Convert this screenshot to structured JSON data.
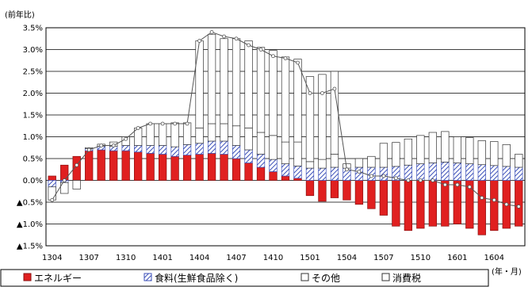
{
  "chart_data": {
    "type": "bar",
    "stacked": true,
    "unit_label": "(前年比)",
    "x_unit_label": "(年・月)",
    "ylim": [
      -1.5,
      3.5
    ],
    "y_ticks": [
      {
        "value": 3.5,
        "label": "3.5%"
      },
      {
        "value": 3.0,
        "label": "3.0%"
      },
      {
        "value": 2.5,
        "label": "2.5%"
      },
      {
        "value": 2.0,
        "label": "2.0%"
      },
      {
        "value": 1.5,
        "label": "1.5%"
      },
      {
        "value": 1.0,
        "label": "1.0%"
      },
      {
        "value": 0.5,
        "label": "0.5%"
      },
      {
        "value": 0.0,
        "label": "0.0%"
      },
      {
        "value": -0.5,
        "label": "▲0.5%"
      },
      {
        "value": -1.0,
        "label": "▲1.0%"
      },
      {
        "value": -1.5,
        "label": "▲1.5%"
      }
    ],
    "grid": true,
    "categories": [
      "1304",
      "1305",
      "1306",
      "1307",
      "1308",
      "1309",
      "1310",
      "1311",
      "1312",
      "1401",
      "1402",
      "1403",
      "1404",
      "1405",
      "1406",
      "1407",
      "1408",
      "1409",
      "1410",
      "1411",
      "1412",
      "1501",
      "1502",
      "1503",
      "1504",
      "1505",
      "1506",
      "1507",
      "1508",
      "1509",
      "1510",
      "1511",
      "1512",
      "1601",
      "1602",
      "1603",
      "1604",
      "1605",
      "1606"
    ],
    "x_tick_labels": [
      "1304",
      "1307",
      "1310",
      "1401",
      "1404",
      "1407",
      "1410",
      "1501",
      "1504",
      "1507",
      "1510",
      "1601",
      "1604"
    ],
    "series": [
      {
        "name": "エネルギー",
        "color": "#e02020",
        "values": [
          0.1,
          0.35,
          0.55,
          0.68,
          0.7,
          0.68,
          0.68,
          0.65,
          0.62,
          0.6,
          0.55,
          0.58,
          0.6,
          0.62,
          0.6,
          0.5,
          0.4,
          0.3,
          0.2,
          0.1,
          0.05,
          -0.35,
          -0.48,
          -0.4,
          -0.45,
          -0.55,
          -0.65,
          -0.8,
          -1.05,
          -1.15,
          -1.1,
          -1.05,
          -1.05,
          -1.0,
          -1.1,
          -1.25,
          -1.15,
          -1.1,
          -1.05
        ]
      },
      {
        "name": "食料(生鮮食品除く)",
        "color": "#4a5fc0",
        "values": [
          -0.15,
          -0.05,
          0.0,
          0.05,
          0.08,
          0.1,
          0.12,
          0.15,
          0.18,
          0.2,
          0.22,
          0.24,
          0.25,
          0.28,
          0.3,
          0.3,
          0.3,
          0.3,
          0.28,
          0.28,
          0.28,
          0.28,
          0.28,
          0.3,
          0.28,
          0.3,
          0.3,
          0.3,
          0.32,
          0.35,
          0.38,
          0.4,
          0.42,
          0.4,
          0.38,
          0.36,
          0.34,
          0.32,
          0.3
        ]
      },
      {
        "name": "その他",
        "color": "#ffffff",
        "values": [
          -0.3,
          -0.25,
          -0.2,
          0.02,
          0.05,
          0.1,
          0.2,
          0.4,
          0.5,
          0.5,
          0.55,
          0.5,
          0.35,
          0.4,
          0.4,
          0.45,
          0.5,
          0.5,
          0.55,
          0.5,
          0.55,
          0.15,
          0.2,
          0.3,
          0.1,
          0.2,
          0.25,
          0.55,
          0.55,
          0.6,
          0.65,
          0.7,
          0.7,
          0.6,
          0.6,
          0.55,
          0.55,
          0.5,
          0.3
        ]
      },
      {
        "name": "消費税",
        "color": "#ffffff",
        "values": [
          0,
          0,
          0,
          0,
          0,
          0,
          0,
          0,
          0,
          0,
          0,
          0,
          2.0,
          2.05,
          1.95,
          2.0,
          2.0,
          1.95,
          1.95,
          1.95,
          1.9,
          1.95,
          1.95,
          1.9,
          0,
          0,
          0,
          0,
          0,
          0,
          0,
          0,
          0,
          0,
          0,
          0,
          0,
          0,
          0
        ]
      }
    ],
    "line": {
      "values": [
        -0.45,
        0.0,
        0.35,
        0.7,
        0.8,
        0.8,
        0.95,
        1.2,
        1.3,
        1.3,
        1.3,
        1.3,
        3.2,
        3.4,
        3.3,
        3.25,
        3.1,
        3.0,
        2.85,
        2.8,
        2.7,
        2.0,
        2.0,
        2.1,
        0.25,
        0.2,
        0.1,
        0.1,
        0.05,
        0.0,
        0.0,
        0.0,
        -0.1,
        -0.1,
        -0.15,
        -0.4,
        -0.45,
        -0.55,
        -0.6
      ]
    }
  },
  "legend": {
    "items": [
      {
        "name": "エネルギー",
        "swatch": "solid"
      },
      {
        "name": "食料(生鮮食品除く)",
        "swatch": "hatched"
      },
      {
        "name": "その他",
        "swatch": "open"
      },
      {
        "name": "消費税",
        "swatch": "open"
      }
    ]
  }
}
